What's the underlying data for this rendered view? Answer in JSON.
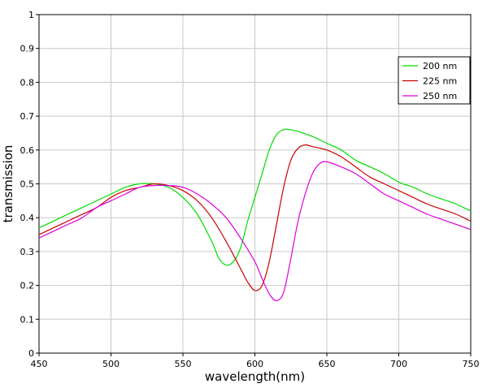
{
  "chart_data": {
    "type": "line",
    "xlabel": "wavelength(nm)",
    "ylabel": "transmission",
    "xlim": [
      450,
      750
    ],
    "ylim": [
      0,
      1
    ],
    "x_ticks": [
      "450",
      "500",
      "550",
      "600",
      "650",
      "700",
      "750"
    ],
    "y_ticks": [
      "0",
      "0.1",
      "0.2",
      "0.3",
      "0.4",
      "0.5",
      "0.6",
      "0.7",
      "0.8",
      "0.9",
      "1"
    ],
    "grid": true,
    "legend_position": "top-right",
    "series": [
      {
        "name": "200 nm",
        "color": "#00dd00",
        "x": [
          450,
          460,
          470,
          480,
          490,
          500,
          510,
          520,
          530,
          540,
          550,
          560,
          570,
          575,
          580,
          585,
          590,
          595,
          600,
          605,
          610,
          615,
          620,
          625,
          630,
          640,
          650,
          660,
          670,
          680,
          690,
          700,
          710,
          720,
          730,
          740,
          750
        ],
        "y": [
          0.37,
          0.39,
          0.41,
          0.43,
          0.45,
          0.47,
          0.49,
          0.5,
          0.5,
          0.49,
          0.46,
          0.41,
          0.33,
          0.28,
          0.26,
          0.27,
          0.31,
          0.39,
          0.46,
          0.53,
          0.6,
          0.645,
          0.66,
          0.66,
          0.655,
          0.64,
          0.62,
          0.6,
          0.57,
          0.55,
          0.53,
          0.505,
          0.49,
          0.47,
          0.455,
          0.44,
          0.42
        ]
      },
      {
        "name": "225 nm",
        "color": "#cc0000",
        "x": [
          450,
          460,
          470,
          480,
          490,
          500,
          510,
          520,
          530,
          540,
          550,
          560,
          570,
          580,
          590,
          595,
          600,
          605,
          610,
          615,
          620,
          625,
          630,
          635,
          640,
          650,
          660,
          670,
          680,
          690,
          700,
          710,
          720,
          730,
          740,
          750
        ],
        "y": [
          0.35,
          0.37,
          0.39,
          0.41,
          0.43,
          0.46,
          0.48,
          0.49,
          0.5,
          0.495,
          0.48,
          0.45,
          0.4,
          0.33,
          0.25,
          0.21,
          0.185,
          0.2,
          0.27,
          0.38,
          0.49,
          0.57,
          0.605,
          0.615,
          0.61,
          0.6,
          0.58,
          0.55,
          0.52,
          0.5,
          0.48,
          0.46,
          0.44,
          0.425,
          0.41,
          0.39
        ]
      },
      {
        "name": "250 nm",
        "color": "#dd00dd",
        "x": [
          450,
          460,
          470,
          480,
          490,
          500,
          510,
          520,
          530,
          540,
          550,
          560,
          570,
          580,
          590,
          600,
          605,
          610,
          615,
          620,
          625,
          630,
          635,
          640,
          645,
          650,
          660,
          670,
          680,
          690,
          700,
          710,
          720,
          730,
          740,
          750
        ],
        "y": [
          0.34,
          0.36,
          0.38,
          0.4,
          0.43,
          0.45,
          0.47,
          0.49,
          0.495,
          0.495,
          0.49,
          0.47,
          0.44,
          0.4,
          0.34,
          0.27,
          0.22,
          0.175,
          0.155,
          0.18,
          0.28,
          0.39,
          0.47,
          0.53,
          0.56,
          0.565,
          0.55,
          0.53,
          0.5,
          0.47,
          0.45,
          0.43,
          0.41,
          0.395,
          0.38,
          0.365
        ]
      }
    ]
  }
}
